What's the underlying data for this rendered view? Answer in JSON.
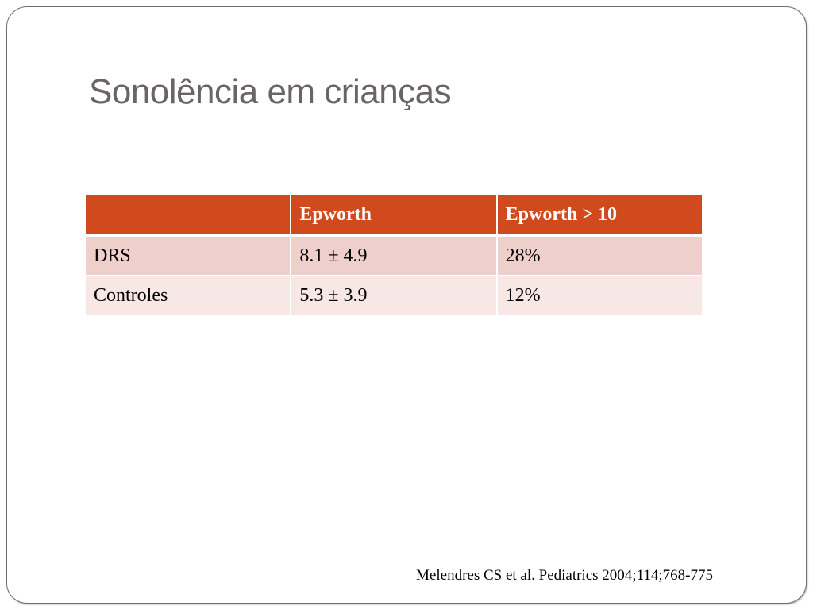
{
  "slide": {
    "title": "Sonolência em crianças",
    "citation": "Melendres CS et al. Pediatrics 2004;114;768-775"
  },
  "chart_data": {
    "type": "table",
    "columns": [
      "",
      "Epworth",
      "Epworth > 10"
    ],
    "rows": [
      [
        "DRS",
        "8.1 ± 4.9",
        "28%"
      ],
      [
        "Controles",
        "5.3 ± 3.9",
        "12%"
      ]
    ]
  },
  "colors": {
    "header_bg": "#d04a1e",
    "row_odd_bg": "#efcfcb",
    "row_even_bg": "#f7e8e6",
    "title_text": "#6b6464"
  }
}
